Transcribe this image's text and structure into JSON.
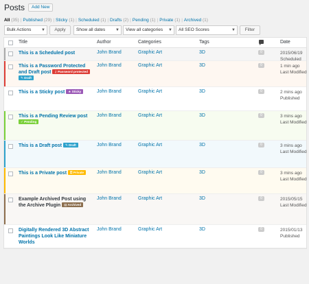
{
  "header": {
    "title": "Posts",
    "add_new": "Add New"
  },
  "views": [
    {
      "label": "All",
      "count": "(35)",
      "current": true
    },
    {
      "label": "Published",
      "count": "(29)"
    },
    {
      "label": "Sticky",
      "count": "(1)"
    },
    {
      "label": "Scheduled",
      "count": "(1)"
    },
    {
      "label": "Drafts",
      "count": "(2)"
    },
    {
      "label": "Pending",
      "count": "(1)"
    },
    {
      "label": "Private",
      "count": "(1)"
    },
    {
      "label": "Archived",
      "count": "(1)"
    }
  ],
  "filters": {
    "bulk_actions": "Bulk Actions",
    "apply": "Apply",
    "dates": "Show all dates",
    "categories": "View all categories",
    "seo": "All SEO Scores",
    "filter": "Filter"
  },
  "columns": {
    "title": "Title",
    "author": "Author",
    "categories": "Categories",
    "tags": "Tags",
    "date": "Date"
  },
  "rows": [
    {
      "title": "This is a Scheduled post",
      "author": "John Brand",
      "category": "Graphic Art",
      "tags": "3D",
      "comments": "0",
      "date": "2015/06/19",
      "status": "Scheduled",
      "bar_color": "#aaaaaa",
      "bg": "#f5f5f5"
    },
    {
      "title": "This is a Password Protected and Draft post",
      "badges": [
        {
          "label": "Password protected",
          "icon": "key-icon",
          "color": "#dd3d36"
        },
        {
          "label": "Draft",
          "icon": "pencil-icon",
          "color": "#2ea2cc"
        }
      ],
      "author": "John Brand",
      "category": "Graphic Art",
      "tags": "3D",
      "comments": "0",
      "date": "1 min ago",
      "status": "Last Modified",
      "bar_color": "#dd3d36",
      "bg": "#fef7f1"
    },
    {
      "title": "This is a Sticky post",
      "badges": [
        {
          "label": "Sticky",
          "icon": "star-icon",
          "color": "#9b59b6"
        }
      ],
      "author": "John Brand",
      "category": "Graphic Art",
      "tags": "3D",
      "comments": "0",
      "date": "2 mins ago",
      "status": "Published",
      "bar_color": "",
      "bg": "#ffffff"
    },
    {
      "title": "This is a Pending Review post",
      "badges": [
        {
          "label": "Pending",
          "icon": "check-icon",
          "color": "#7ad03a"
        }
      ],
      "author": "John Brand",
      "category": "Graphic Art",
      "tags": "3D",
      "comments": "0",
      "date": "3 mins ago",
      "status": "Last Modified",
      "bar_color": "#7ad03a",
      "bg": "#f7fcf0"
    },
    {
      "title": "This is a Draft post",
      "badges": [
        {
          "label": "Draft",
          "icon": "pencil-icon",
          "color": "#2ea2cc"
        }
      ],
      "author": "John Brand",
      "category": "Graphic Art",
      "tags": "3D",
      "comments": "0",
      "date": "3 mins ago",
      "status": "Last Modified",
      "bar_color": "#2ea2cc",
      "bg": "#f2f9fc"
    },
    {
      "title": "This is a Private post",
      "badges": [
        {
          "label": "Private",
          "icon": "lock-icon",
          "color": "#ffba00"
        }
      ],
      "author": "John Brand",
      "category": "Graphic Art",
      "tags": "3D",
      "comments": "0",
      "date": "3 mins ago",
      "status": "Last Modified",
      "bar_color": "#ffba00",
      "bg": "#fffbf0"
    },
    {
      "title": "Example Archived Post using the Archive Plugin",
      "badges": [
        {
          "label": "Archived",
          "icon": "archive-icon",
          "color": "#8c6e4d"
        }
      ],
      "dark": true,
      "author": "John Brand",
      "category": "Graphic Art",
      "tags": "3D",
      "comments": "0",
      "date": "2015/05/15",
      "status": "Last Modified",
      "bar_color": "#8c6e4d",
      "bg": "#f9f7f5"
    },
    {
      "title": "Digitally Rendered 3D Abstract Paintings Look Like Miniature Worlds",
      "author": "John Brand",
      "category": "Graphic Art",
      "tags": "3D",
      "comments": "0",
      "date": "2015/01/13",
      "status": "Published",
      "bar_color": "",
      "bg": "#ffffff"
    }
  ]
}
